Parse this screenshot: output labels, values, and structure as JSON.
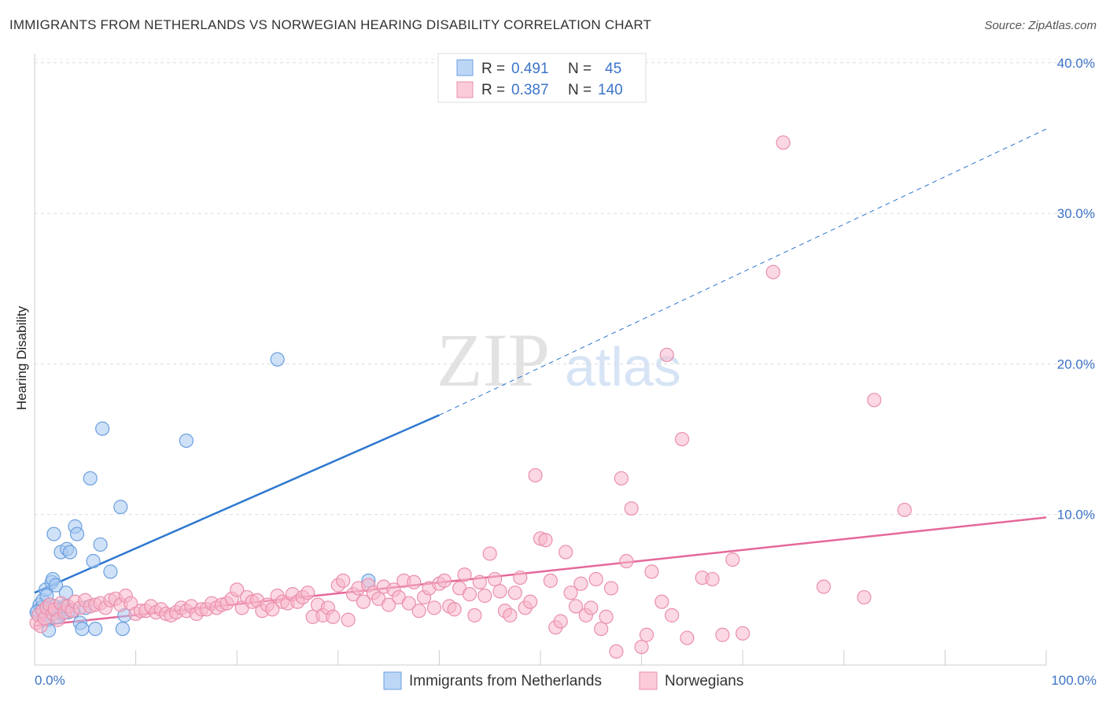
{
  "header": {
    "title": "IMMIGRANTS FROM NETHERLANDS VS NORWEGIAN HEARING DISABILITY CORRELATION CHART",
    "source": "Source: ZipAtlas.com"
  },
  "watermark": {
    "zip": "ZIP",
    "atlas": "atlas"
  },
  "legend": {
    "r_label": "R =",
    "n_label": "N =",
    "rows": [
      {
        "r": "0.491",
        "n": "45",
        "color": "#a8c8f0"
      },
      {
        "r": "0.387",
        "n": "140",
        "color": "#f7b8cc"
      }
    ]
  },
  "chart_data": {
    "type": "scatter",
    "title": "IMMIGRANTS FROM NETHERLANDS VS NORWEGIAN HEARING DISABILITY CORRELATION CHART",
    "xlabel": "",
    "ylabel": "Hearing Disability",
    "xlim": [
      0,
      100
    ],
    "ylim": [
      0,
      42
    ],
    "x_tick_labels": [
      "0.0%",
      "100.0%"
    ],
    "y_ticks": [
      10,
      20,
      30,
      40
    ],
    "y_tick_labels": [
      "10.0%",
      "20.0%",
      "30.0%",
      "40.0%"
    ],
    "grid": true,
    "series": [
      {
        "name": "Immigrants from Netherlands",
        "color": "#a8c8f0",
        "stroke": "#6a9fe0",
        "trend": {
          "x0": 0,
          "y0": 4.8,
          "x1": 40,
          "y1": 16.6,
          "dash_to_x": 100,
          "dash_to_y": 35.6,
          "color": "#2f78d0"
        },
        "points": [
          [
            0.3,
            3.6
          ],
          [
            0.5,
            4.0
          ],
          [
            0.7,
            3.8
          ],
          [
            0.8,
            4.3
          ],
          [
            1.0,
            3.3
          ],
          [
            1.1,
            5.0
          ],
          [
            1.2,
            4.6
          ],
          [
            1.3,
            3.0
          ],
          [
            1.4,
            2.3
          ],
          [
            1.5,
            3.7
          ],
          [
            1.7,
            5.5
          ],
          [
            1.8,
            5.7
          ],
          [
            1.9,
            8.7
          ],
          [
            2.0,
            3.9
          ],
          [
            2.1,
            5.3
          ],
          [
            2.2,
            3.5
          ],
          [
            2.3,
            3.2
          ],
          [
            2.4,
            3.7
          ],
          [
            2.6,
            7.5
          ],
          [
            2.7,
            3.4
          ],
          [
            2.8,
            3.7
          ],
          [
            3.0,
            3.9
          ],
          [
            3.1,
            4.8
          ],
          [
            3.2,
            7.7
          ],
          [
            3.3,
            3.5
          ],
          [
            3.5,
            7.5
          ],
          [
            3.8,
            3.6
          ],
          [
            4.0,
            9.2
          ],
          [
            4.2,
            8.7
          ],
          [
            4.5,
            2.8
          ],
          [
            4.7,
            2.4
          ],
          [
            5.0,
            3.8
          ],
          [
            5.5,
            12.4
          ],
          [
            5.8,
            6.9
          ],
          [
            6.0,
            2.4
          ],
          [
            6.5,
            8.0
          ],
          [
            6.7,
            15.7
          ],
          [
            7.5,
            6.2
          ],
          [
            8.5,
            10.5
          ],
          [
            8.7,
            2.4
          ],
          [
            8.9,
            3.3
          ],
          [
            15.0,
            14.9
          ],
          [
            24.0,
            20.3
          ],
          [
            33.0,
            5.6
          ],
          [
            0.2,
            3.5
          ]
        ]
      },
      {
        "name": "Norwegians",
        "color": "#f7b8cc",
        "stroke": "#ea8fab",
        "trend": {
          "x0": 0,
          "y0": 2.6,
          "x1": 100,
          "y1": 9.8,
          "color": "#e5689a"
        },
        "points": [
          [
            0.2,
            2.8
          ],
          [
            0.4,
            3.3
          ],
          [
            0.6,
            2.6
          ],
          [
            0.8,
            3.6
          ],
          [
            1.0,
            3.1
          ],
          [
            1.2,
            3.8
          ],
          [
            1.5,
            4.0
          ],
          [
            1.8,
            3.4
          ],
          [
            2.0,
            3.7
          ],
          [
            2.3,
            3.0
          ],
          [
            2.6,
            4.1
          ],
          [
            3.0,
            3.5
          ],
          [
            3.3,
            3.9
          ],
          [
            3.7,
            3.6
          ],
          [
            4.0,
            4.2
          ],
          [
            4.5,
            3.8
          ],
          [
            5.0,
            4.3
          ],
          [
            5.5,
            3.9
          ],
          [
            6.0,
            4.0
          ],
          [
            6.5,
            4.1
          ],
          [
            7.0,
            3.8
          ],
          [
            7.5,
            4.3
          ],
          [
            8.0,
            4.4
          ],
          [
            8.5,
            4.0
          ],
          [
            9.0,
            4.6
          ],
          [
            9.5,
            4.1
          ],
          [
            10.0,
            3.4
          ],
          [
            10.5,
            3.6
          ],
          [
            11.0,
            3.6
          ],
          [
            11.5,
            3.9
          ],
          [
            12.0,
            3.5
          ],
          [
            12.5,
            3.7
          ],
          [
            13.0,
            3.4
          ],
          [
            13.5,
            3.3
          ],
          [
            14.0,
            3.5
          ],
          [
            14.5,
            3.8
          ],
          [
            15.0,
            3.6
          ],
          [
            15.5,
            3.9
          ],
          [
            16.0,
            3.4
          ],
          [
            16.5,
            3.7
          ],
          [
            17.0,
            3.7
          ],
          [
            17.5,
            4.1
          ],
          [
            18.0,
            3.8
          ],
          [
            18.5,
            4.0
          ],
          [
            19.0,
            4.1
          ],
          [
            19.5,
            4.4
          ],
          [
            20.0,
            5.0
          ],
          [
            20.5,
            3.8
          ],
          [
            21.0,
            4.5
          ],
          [
            21.5,
            4.2
          ],
          [
            22.0,
            4.3
          ],
          [
            22.5,
            3.6
          ],
          [
            23.0,
            4.0
          ],
          [
            23.5,
            3.7
          ],
          [
            24.0,
            4.6
          ],
          [
            24.5,
            4.2
          ],
          [
            25.0,
            4.1
          ],
          [
            25.5,
            4.7
          ],
          [
            26.0,
            4.2
          ],
          [
            26.5,
            4.5
          ],
          [
            27.0,
            4.8
          ],
          [
            27.5,
            3.2
          ],
          [
            28.0,
            4.0
          ],
          [
            28.5,
            3.3
          ],
          [
            29.0,
            3.8
          ],
          [
            29.5,
            3.2
          ],
          [
            30.0,
            5.3
          ],
          [
            30.5,
            5.6
          ],
          [
            31.0,
            3.0
          ],
          [
            31.5,
            4.7
          ],
          [
            32.0,
            5.1
          ],
          [
            32.5,
            4.2
          ],
          [
            33.0,
            5.3
          ],
          [
            33.5,
            4.8
          ],
          [
            34.0,
            4.4
          ],
          [
            34.5,
            5.2
          ],
          [
            35.0,
            4.0
          ],
          [
            35.5,
            5.0
          ],
          [
            36.0,
            4.5
          ],
          [
            36.5,
            5.6
          ],
          [
            37.0,
            4.1
          ],
          [
            37.5,
            5.5
          ],
          [
            38.0,
            3.6
          ],
          [
            38.5,
            4.5
          ],
          [
            39.0,
            5.1
          ],
          [
            39.5,
            3.8
          ],
          [
            40.0,
            5.4
          ],
          [
            40.5,
            5.6
          ],
          [
            41.0,
            3.9
          ],
          [
            41.5,
            3.7
          ],
          [
            42.0,
            5.1
          ],
          [
            42.5,
            6.0
          ],
          [
            43.0,
            4.7
          ],
          [
            43.5,
            3.3
          ],
          [
            44.0,
            5.5
          ],
          [
            44.5,
            4.6
          ],
          [
            45.0,
            7.4
          ],
          [
            45.5,
            5.7
          ],
          [
            46.0,
            4.9
          ],
          [
            46.5,
            3.6
          ],
          [
            47.0,
            3.3
          ],
          [
            47.5,
            4.8
          ],
          [
            48.0,
            5.8
          ],
          [
            48.5,
            3.8
          ],
          [
            49.0,
            4.2
          ],
          [
            49.5,
            12.6
          ],
          [
            50.0,
            8.4
          ],
          [
            50.5,
            8.3
          ],
          [
            51.0,
            5.6
          ],
          [
            51.5,
            2.5
          ],
          [
            52.0,
            2.9
          ],
          [
            52.5,
            7.5
          ],
          [
            53.0,
            4.8
          ],
          [
            53.5,
            3.9
          ],
          [
            54.0,
            5.4
          ],
          [
            54.5,
            3.3
          ],
          [
            55.0,
            3.8
          ],
          [
            55.5,
            5.7
          ],
          [
            56.0,
            2.4
          ],
          [
            56.5,
            3.2
          ],
          [
            57.0,
            5.1
          ],
          [
            57.5,
            0.9
          ],
          [
            58.0,
            12.4
          ],
          [
            58.5,
            6.9
          ],
          [
            59.0,
            10.4
          ],
          [
            60.0,
            1.2
          ],
          [
            60.5,
            2.0
          ],
          [
            61.0,
            6.2
          ],
          [
            62.0,
            4.2
          ],
          [
            62.5,
            20.6
          ],
          [
            63.0,
            3.3
          ],
          [
            64.0,
            15.0
          ],
          [
            64.5,
            1.8
          ],
          [
            66.0,
            5.8
          ],
          [
            67.0,
            5.7
          ],
          [
            68.0,
            2.0
          ],
          [
            69.0,
            7.0
          ],
          [
            70.0,
            2.1
          ],
          [
            73.0,
            26.1
          ],
          [
            74.0,
            34.7
          ],
          [
            78.0,
            5.2
          ],
          [
            82.0,
            4.5
          ],
          [
            83.0,
            17.6
          ],
          [
            86.0,
            10.3
          ]
        ]
      }
    ]
  },
  "bottom_legend": {
    "items": [
      {
        "label": "Immigrants from Netherlands",
        "color": "#a8c8f0"
      },
      {
        "label": "Norwegians",
        "color": "#f7b8cc"
      }
    ]
  }
}
